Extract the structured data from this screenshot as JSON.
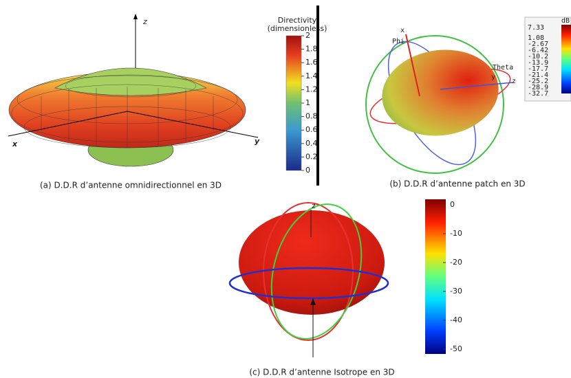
{
  "panel_a": {
    "axes": {
      "z": "z",
      "x": "x",
      "y": "y"
    },
    "colorbar": {
      "title": "Directivity",
      "subtitle": "(dimensionless)",
      "ticks": [
        0,
        0.2,
        0.4,
        0.6,
        0.8,
        1,
        1.2,
        1.4,
        1.6,
        1.8,
        2
      ]
    },
    "caption": "(a) D.D.R d’antenne omnidirectionnel en 3D"
  },
  "panel_b": {
    "axes": {
      "x": "x",
      "phi": "Phi",
      "theta": "Theta",
      "z": "z",
      "y": "y"
    },
    "colorbar": {
      "unit": "dB",
      "ticks": [
        7.33,
        1.08,
        -2.67,
        -6.42,
        -10.2,
        -13.9,
        -17.7,
        -21.4,
        -25.2,
        -28.9,
        -32.7
      ]
    },
    "caption": "(b) D.D.R d’antenne patch en 3D"
  },
  "panel_c": {
    "axes": {
      "z": "z"
    },
    "colorbar": {
      "ticks": [
        0,
        -10,
        -20,
        -30,
        -40,
        -50
      ]
    },
    "caption": "(c) D.D.R d’antenne Isotrope en 3D"
  }
}
